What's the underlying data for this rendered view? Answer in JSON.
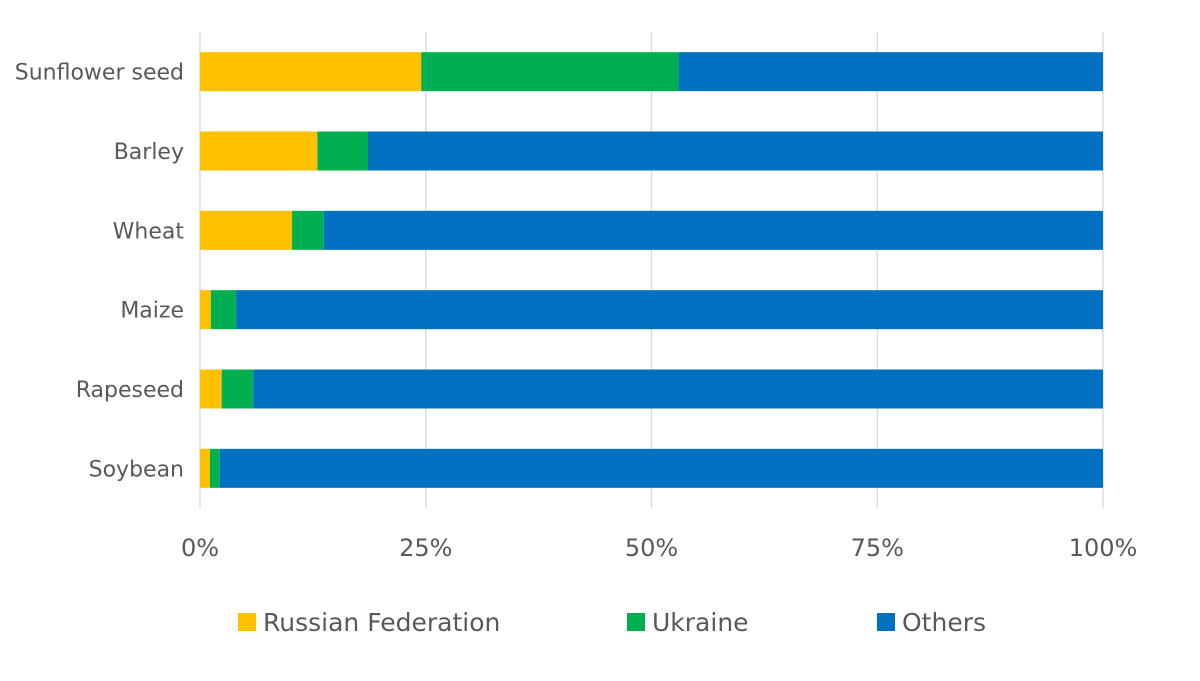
{
  "chart_data": {
    "type": "bar",
    "orientation": "horizontal",
    "stacked": true,
    "title": "",
    "xlabel": "",
    "ylabel": "",
    "xlim": [
      0,
      100
    ],
    "x_ticks": [
      "0%",
      "25%",
      "50%",
      "75%",
      "100%"
    ],
    "x_tick_values": [
      0,
      25,
      50,
      75,
      100
    ],
    "grid": true,
    "legend_position": "bottom",
    "categories": [
      "Sunflower seed",
      "Barley",
      "Wheat",
      "Maize",
      "Rapeseed",
      "Soybean"
    ],
    "series": [
      {
        "name": "Russian Federation",
        "color": "#FFC000",
        "values": [
          24.5,
          13.0,
          10.2,
          1.2,
          2.4,
          1.1
        ]
      },
      {
        "name": "Ukraine",
        "color": "#00B050",
        "values": [
          28.5,
          5.6,
          3.5,
          2.8,
          3.5,
          1.1
        ]
      },
      {
        "name": "Others",
        "color": "#0070C0",
        "values": [
          47.0,
          81.4,
          86.3,
          96.0,
          94.1,
          97.8
        ]
      }
    ]
  }
}
